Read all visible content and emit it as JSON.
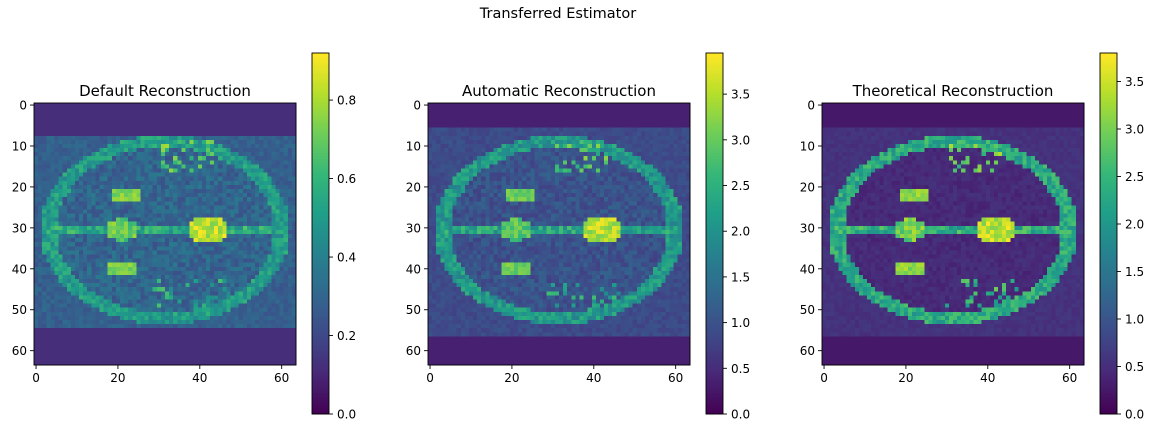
{
  "figure": {
    "suptitle": "Transferred Estimator"
  },
  "chart_data": [
    {
      "type": "heatmap",
      "title": "Default Reconstruction",
      "xlabel": "",
      "ylabel": "",
      "grid_size": [
        64,
        64
      ],
      "xlim": [
        0,
        63
      ],
      "ylim": [
        63,
        0
      ],
      "x_ticks": [
        0,
        20,
        40,
        60
      ],
      "y_ticks": [
        0,
        10,
        20,
        30,
        40,
        50,
        60
      ],
      "colormap": "viridis",
      "colorbar": {
        "min": 0.0,
        "max": 0.92,
        "ticks": [
          0.0,
          0.2,
          0.4,
          0.6,
          0.8
        ],
        "tick_labels": [
          "0.0",
          "0.2",
          "0.4",
          "0.6",
          "0.8"
        ]
      },
      "image": {
        "description_values": "MRI brain axial slice reconstruction, approximate intensity levels",
        "background": 0.12,
        "band_rows": [
          8,
          54
        ],
        "band_level": 0.28,
        "skull_ring_level": 0.55,
        "tissue_level": 0.3,
        "ventricle_level": 0.8,
        "peak": 0.92
      }
    },
    {
      "type": "heatmap",
      "title": "Automatic Reconstruction",
      "xlabel": "",
      "ylabel": "",
      "grid_size": [
        64,
        64
      ],
      "xlim": [
        0,
        63
      ],
      "ylim": [
        63,
        0
      ],
      "x_ticks": [
        0,
        20,
        40,
        60
      ],
      "y_ticks": [
        0,
        10,
        20,
        30,
        40,
        50,
        60
      ],
      "colormap": "viridis",
      "colorbar": {
        "min": 0.0,
        "max": 3.95,
        "ticks": [
          0.0,
          0.5,
          1.0,
          1.5,
          2.0,
          2.5,
          3.0,
          3.5
        ],
        "tick_labels": [
          "0.0",
          "0.5",
          "1.0",
          "1.5",
          "2.0",
          "2.5",
          "3.0",
          "3.5"
        ]
      },
      "image": {
        "background": 0.35,
        "band_rows": [
          6,
          56
        ],
        "band_level": 0.9,
        "skull_ring_level": 2.3,
        "tissue_level": 1.0,
        "ventricle_level": 3.3,
        "peak": 3.9
      }
    },
    {
      "type": "heatmap",
      "title": "Theoretical Reconstruction",
      "xlabel": "",
      "ylabel": "",
      "grid_size": [
        64,
        64
      ],
      "xlim": [
        0,
        63
      ],
      "ylim": [
        63,
        0
      ],
      "x_ticks": [
        0,
        20,
        40,
        60
      ],
      "y_ticks": [
        0,
        10,
        20,
        30,
        40,
        50,
        60
      ],
      "colormap": "viridis",
      "colorbar": {
        "min": 0.0,
        "max": 3.8,
        "ticks": [
          0.0,
          0.5,
          1.0,
          1.5,
          2.0,
          2.5,
          3.0,
          3.5
        ],
        "tick_labels": [
          "0.0",
          "0.5",
          "1.0",
          "1.5",
          "2.0",
          "2.5",
          "3.0",
          "3.5"
        ]
      },
      "image": {
        "background": 0.25,
        "band_rows": [
          6,
          56
        ],
        "band_level": 0.55,
        "skull_ring_level": 2.5,
        "tissue_level": 0.45,
        "ventricle_level": 3.4,
        "peak": 3.8
      }
    }
  ]
}
